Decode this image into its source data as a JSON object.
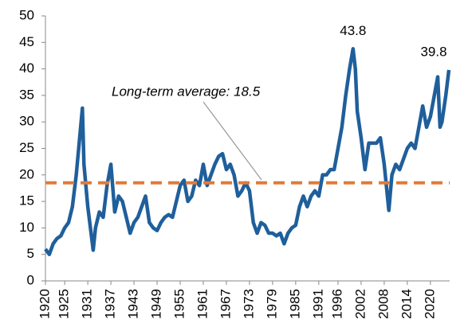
{
  "chart_data": {
    "type": "line",
    "series": [
      {
        "color": "#1f5f9b",
        "x": [
          1920,
          1921,
          1922,
          1923,
          1924,
          1925,
          1926,
          1927,
          1928,
          1929.6,
          1930,
          1931,
          1932.4,
          1933,
          1934,
          1935,
          1936,
          1937,
          1938,
          1939,
          1940,
          1941,
          1942,
          1943,
          1944,
          1945,
          1946,
          1947,
          1948,
          1949,
          1950,
          1951,
          1952,
          1953,
          1954,
          1955,
          1956,
          1957,
          1958,
          1959,
          1960,
          1961,
          1962,
          1963,
          1964,
          1965,
          1966,
          1967,
          1968,
          1969,
          1970,
          1971,
          1972,
          1973,
          1974,
          1975,
          1976,
          1977,
          1978,
          1979,
          1980,
          1981,
          1982,
          1983,
          1984,
          1985,
          1986,
          1987,
          1988,
          1989,
          1990,
          1991,
          1992,
          1993,
          1994,
          1995,
          1996,
          1997,
          1998,
          1999,
          1999.9,
          2000.5,
          2001,
          2002,
          2003,
          2004,
          2005,
          2006,
          2007,
          2008,
          2009.2,
          2010,
          2011,
          2012,
          2013,
          2014,
          2015,
          2016,
          2017,
          2018,
          2019,
          2020,
          2021.9,
          2022.5,
          2023,
          2024,
          2024.8
        ],
        "values": [
          6,
          5,
          7,
          8,
          8.5,
          10,
          11,
          14,
          20,
          32.6,
          22,
          14,
          5.8,
          10,
          13,
          12,
          18,
          22,
          13,
          16,
          15,
          12,
          9,
          11,
          12,
          14,
          16,
          11,
          10,
          9.5,
          11,
          12,
          12.5,
          12,
          15,
          18,
          19,
          15,
          16,
          19,
          18,
          22,
          18,
          20,
          22,
          23.5,
          24,
          21,
          22,
          20,
          16,
          17,
          18.5,
          17,
          11,
          9,
          11,
          10.5,
          9,
          9,
          8.5,
          9,
          7,
          9,
          10,
          10.5,
          14,
          16,
          14,
          16,
          17,
          16,
          20,
          20,
          21,
          21,
          25,
          29,
          35,
          40,
          43.8,
          40,
          32,
          27,
          21,
          26,
          26,
          26,
          27,
          22,
          13.3,
          20,
          22,
          21,
          23,
          25,
          26,
          25,
          29,
          33,
          29,
          31,
          38.5,
          29,
          30,
          35,
          39.8
        ]
      }
    ],
    "average": {
      "value": 18.5,
      "label": "Long-term average: 18.5",
      "color": "#e07b39"
    },
    "annotations": [
      {
        "text": "43.8",
        "x": 1999.9,
        "y": 43.8
      },
      {
        "text": "39.8",
        "x": 2024.8,
        "y": 39.8
      }
    ],
    "xlim": [
      1920,
      2025
    ],
    "xticks": [
      1920,
      1925,
      1931,
      1937,
      1943,
      1949,
      1955,
      1961,
      1967,
      1973,
      1979,
      1985,
      1991,
      1996,
      2002,
      2008,
      2014,
      2020
    ],
    "ylim": [
      0,
      50
    ],
    "yticks": [
      0,
      5,
      10,
      15,
      20,
      25,
      30,
      35,
      40,
      45,
      50
    ],
    "grid": false
  }
}
